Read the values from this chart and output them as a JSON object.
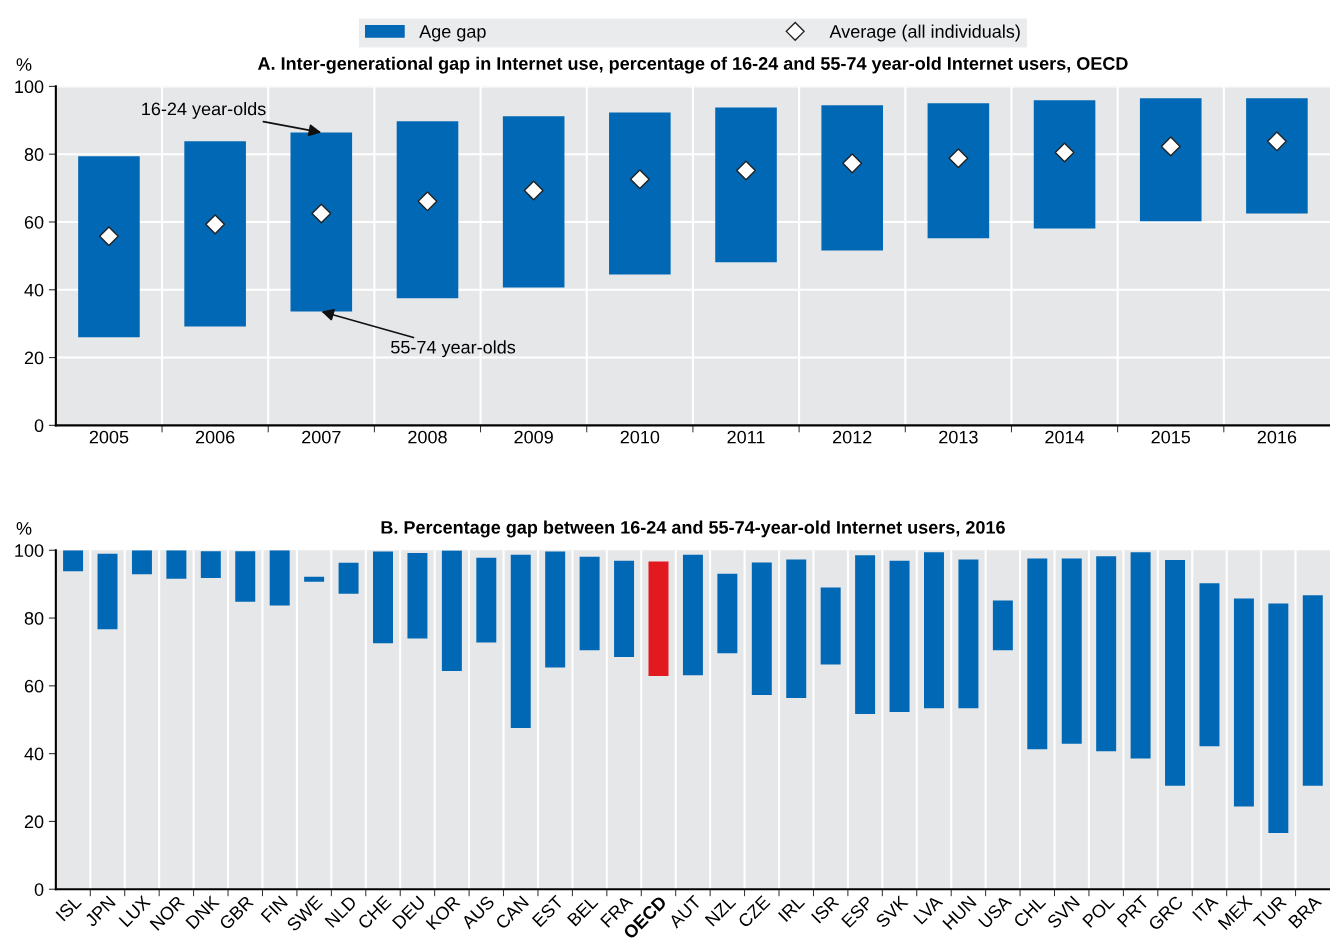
{
  "chart_data": [
    {
      "type": "bar",
      "title": "A. Inter-generational gap in Internet use, percentage of 16-24 and 55-74 year-old Internet users, OECD",
      "ylabel": "%",
      "categories": [
        "2005",
        "2006",
        "2007",
        "2008",
        "2009",
        "2010",
        "2011",
        "2012",
        "2013",
        "2014",
        "2015",
        "2016"
      ],
      "series": [
        {
          "name": "Age gap",
          "type": "bar",
          "color": "#0068b4",
          "base": [
            26.0,
            29.2,
            33.6,
            37.5,
            40.7,
            44.5,
            48.1,
            51.6,
            55.2,
            58.1,
            60.2,
            62.5
          ],
          "values": [
            53.4,
            54.6,
            52.8,
            52.2,
            50.5,
            47.8,
            45.7,
            42.8,
            39.8,
            37.8,
            36.3,
            34.0
          ]
        },
        {
          "name": "Average (all individuals)",
          "type": "scatter",
          "color": "#ffffff",
          "marker": "diamond",
          "values": [
            55.8,
            59.3,
            62.5,
            66.1,
            69.3,
            72.6,
            75.2,
            77.3,
            78.8,
            80.5,
            82.3,
            83.8
          ]
        }
      ],
      "annotations": [
        {
          "text": "16-24 year-olds",
          "x": "2007",
          "y": 86.4
        },
        {
          "text": "55-74 year-olds",
          "x": "2007",
          "y": 33.6
        }
      ],
      "ylim": [
        0,
        100
      ],
      "yticks": [
        0,
        20,
        40,
        60,
        80,
        100
      ],
      "grid": true,
      "legend": "top"
    },
    {
      "type": "bar",
      "title": "B. Percentage gap between 16-24 and 55-74-year-old Internet users, 2016",
      "ylabel": "%",
      "categories": [
        "ISL",
        "JPN",
        "LUX",
        "NOR",
        "DNK",
        "GBR",
        "FIN",
        "SWE",
        "NLD",
        "CHE",
        "DEU",
        "KOR",
        "AUS",
        "CAN",
        "EST",
        "BEL",
        "FRA",
        "OECD",
        "AUT",
        "NZL",
        "CZE",
        "IRL",
        "ISR",
        "ESP",
        "SVK",
        "LVA",
        "HUN",
        "USA",
        "CHL",
        "SVN",
        "POL",
        "PRT",
        "GRC",
        "ITA",
        "MEX",
        "TUR",
        "BRA"
      ],
      "base": [
        93.8,
        76.7,
        92.9,
        91.6,
        91.8,
        84.8,
        83.7,
        90.7,
        87.2,
        72.6,
        74.0,
        64.4,
        72.8,
        47.6,
        65.4,
        70.5,
        68.5,
        62.9,
        63.1,
        69.6,
        57.3,
        56.4,
        66.3,
        51.7,
        52.3,
        53.4,
        53.4,
        70.5,
        41.3,
        42.9,
        40.7,
        38.6,
        30.5,
        42.2,
        24.4,
        16.6,
        30.5
      ],
      "values": [
        6.2,
        22.3,
        7.1,
        8.4,
        7.9,
        14.9,
        16.3,
        1.5,
        9.1,
        27.0,
        25.2,
        35.5,
        25.0,
        51.1,
        34.2,
        27.6,
        28.4,
        33.8,
        35.6,
        23.5,
        39.1,
        40.9,
        22.7,
        46.8,
        44.6,
        46.0,
        43.9,
        14.7,
        56.3,
        54.7,
        57.5,
        60.8,
        66.6,
        48.1,
        61.4,
        67.7,
        56.2
      ],
      "colors": [
        "#0068b4",
        "#0068b4",
        "#0068b4",
        "#0068b4",
        "#0068b4",
        "#0068b4",
        "#0068b4",
        "#0068b4",
        "#0068b4",
        "#0068b4",
        "#0068b4",
        "#0068b4",
        "#0068b4",
        "#0068b4",
        "#0068b4",
        "#0068b4",
        "#0068b4",
        "#e2191e",
        "#0068b4",
        "#0068b4",
        "#0068b4",
        "#0068b4",
        "#0068b4",
        "#0068b4",
        "#0068b4",
        "#0068b4",
        "#0068b4",
        "#0068b4",
        "#0068b4",
        "#0068b4",
        "#0068b4",
        "#0068b4",
        "#0068b4",
        "#0068b4",
        "#0068b4",
        "#0068b4",
        "#0068b4"
      ],
      "ylim": [
        0,
        100
      ],
      "yticks": [
        0,
        20,
        40,
        60,
        80,
        100
      ],
      "grid": "x"
    }
  ]
}
